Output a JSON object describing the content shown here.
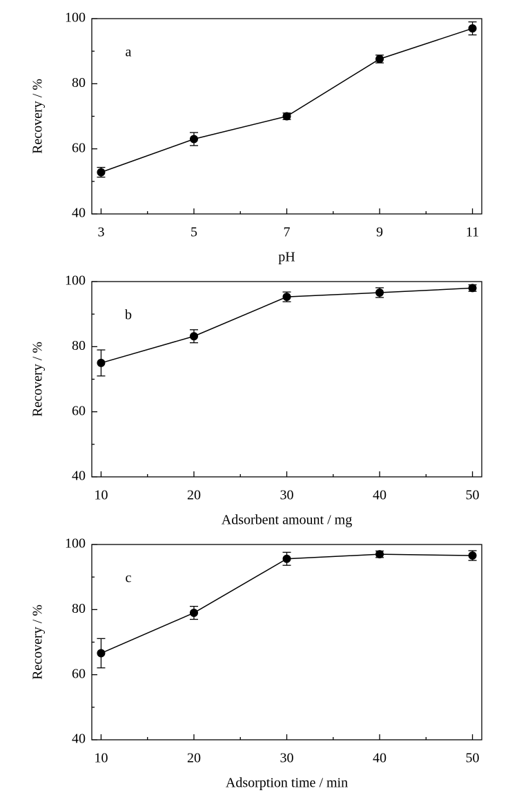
{
  "chart_data": [
    {
      "type": "line",
      "annotation": "a",
      "xlabel": "pH",
      "ylabel": "Recovery / %",
      "x": [
        3,
        5,
        7,
        9,
        11
      ],
      "series": [
        {
          "color": "#000000",
          "values": [
            52.8,
            63,
            70,
            87.6,
            97
          ],
          "errors": [
            1.5,
            2,
            1,
            1.2,
            2
          ]
        }
      ],
      "xlim": [
        2.8,
        11.2
      ],
      "ylim": [
        40,
        100
      ],
      "xticks": [
        3,
        5,
        7,
        9,
        11
      ],
      "yticks": [
        40,
        60,
        80,
        100
      ],
      "xminorticks": [
        4,
        6,
        8,
        10
      ],
      "yminorticks": [
        50,
        70,
        90
      ]
    },
    {
      "type": "line",
      "annotation": "b",
      "xlabel": "Adsorbent amount / mg",
      "ylabel": "Recovery / %",
      "x": [
        10,
        20,
        30,
        40,
        50
      ],
      "series": [
        {
          "color": "#000000",
          "values": [
            75,
            83.2,
            95.3,
            96.6,
            98
          ],
          "errors": [
            4,
            2,
            1.5,
            1.5,
            1
          ]
        }
      ],
      "xlim": [
        9,
        51
      ],
      "ylim": [
        40,
        100
      ],
      "xticks": [
        10,
        20,
        30,
        40,
        50
      ],
      "yticks": [
        40,
        60,
        80,
        100
      ],
      "xminorticks": [
        15,
        25,
        35,
        45
      ],
      "yminorticks": [
        50,
        70,
        90
      ]
    },
    {
      "type": "line",
      "annotation": "c",
      "xlabel": "Adsorption time / min",
      "ylabel": "Recovery / %",
      "x": [
        10,
        20,
        30,
        40,
        50
      ],
      "series": [
        {
          "color": "#000000",
          "values": [
            66.6,
            79,
            95.6,
            97,
            96.6
          ],
          "errors": [
            4.5,
            2,
            2,
            1,
            1.5
          ]
        }
      ],
      "xlim": [
        9,
        51
      ],
      "ylim": [
        40,
        100
      ],
      "xticks": [
        10,
        20,
        30,
        40,
        50
      ],
      "yticks": [
        40,
        60,
        80,
        100
      ],
      "xminorticks": [
        15,
        25,
        35,
        45
      ],
      "yminorticks": [
        50,
        70,
        90
      ]
    }
  ]
}
